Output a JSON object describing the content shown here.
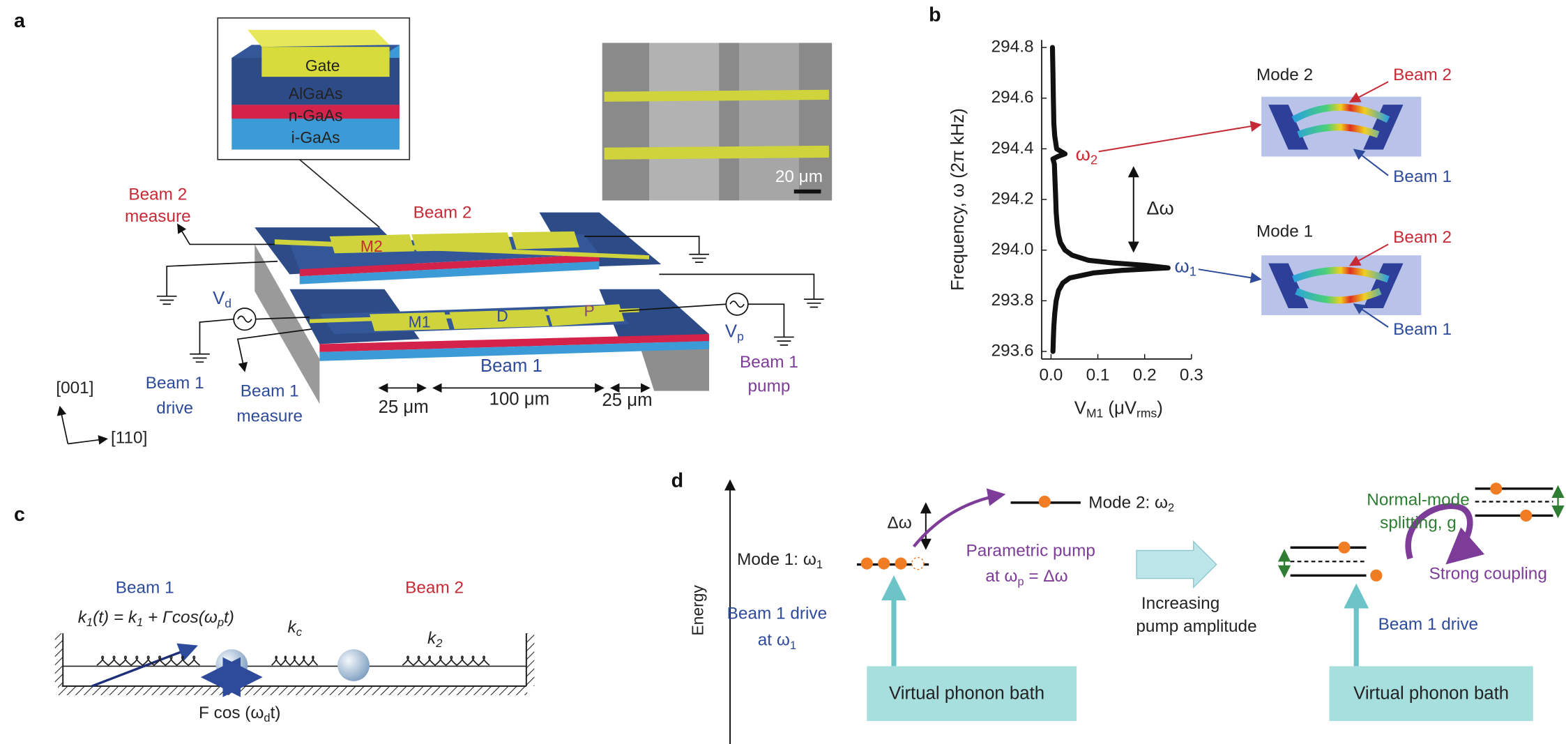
{
  "panel_labels": [
    "a",
    "b",
    "c",
    "d"
  ],
  "panel_a": {
    "layers": [
      "Gate",
      "AlGaAs",
      "n-GaAs",
      "i-GaAs"
    ],
    "scale_bar": "20 μm",
    "beam2": "Beam 2",
    "beam2_measure": {
      "line1": "Beam 2",
      "line2": "measure"
    },
    "electrodes": [
      "M2",
      "M1",
      "D",
      "P"
    ],
    "vd": [
      "V",
      "d"
    ],
    "vp": [
      "V",
      "p"
    ],
    "beam1": "Beam 1",
    "beam1_drive": {
      "line1": "Beam 1",
      "line2": "drive"
    },
    "beam1_measure": {
      "line1": "Beam 1",
      "line2": "measure"
    },
    "beam1_pump": {
      "line1": "Beam 1",
      "line2": "pump"
    },
    "dimensions": [
      "25 μm",
      "100 μm",
      "25 μm"
    ],
    "axes": [
      "[001]",
      "[110]"
    ]
  },
  "chart_data": {
    "type": "line",
    "orientation": "horizontal",
    "y_label": "Frequency, ω (2π kHz)",
    "x_label": [
      "V",
      "M1",
      " (μV",
      "rms",
      ")"
    ],
    "color": "#111111",
    "x": [
      293.6,
      293.65,
      293.7,
      293.75,
      293.8,
      293.84,
      293.87,
      293.89,
      293.91,
      293.92,
      293.93,
      293.94,
      293.95,
      293.96,
      293.98,
      294.0,
      294.03,
      294.06,
      294.1,
      294.15,
      294.2,
      294.25,
      294.3,
      294.34,
      294.36,
      294.37,
      294.38,
      294.4,
      294.45,
      294.5,
      294.6,
      294.7,
      294.8
    ],
    "values": [
      0.004,
      0.005,
      0.006,
      0.008,
      0.011,
      0.016,
      0.025,
      0.04,
      0.09,
      0.15,
      0.25,
      0.2,
      0.13,
      0.08,
      0.045,
      0.03,
      0.02,
      0.016,
      0.013,
      0.011,
      0.01,
      0.009,
      0.008,
      0.007,
      0.004,
      0.015,
      0.03,
      0.012,
      0.008,
      0.006,
      0.005,
      0.004,
      0.003
    ],
    "xlim": [
      -0.02,
      0.3
    ],
    "xticks": [
      {
        "value": 0,
        "label": "0.0"
      },
      0.1,
      0.2,
      0.3
    ],
    "ylim": [
      293.57,
      294.83
    ],
    "yticks": [
      293.6,
      293.8,
      {
        "value": 294,
        "label": "294.0"
      },
      294.2,
      294.4,
      294.6,
      294.8
    ]
  },
  "panel_b": {
    "omega2": [
      "ω",
      "2"
    ],
    "omega1": [
      "ω",
      "1"
    ],
    "delta": "Δω",
    "mode2": {
      "title": "Mode 2",
      "beam2": "Beam 2",
      "beam1": "Beam 1"
    },
    "mode1": {
      "title": "Mode 1",
      "beam2": "Beam 2",
      "beam1": "Beam 1"
    }
  },
  "panel_c": {
    "beam1": "Beam 1",
    "beam2": "Beam 2",
    "spring_eq": [
      "k",
      "1",
      "(t) = k",
      "1",
      " + Γcos(ω",
      "p",
      "t)"
    ],
    "kc": [
      "k",
      "c"
    ],
    "k2": [
      "k",
      "2"
    ],
    "force": [
      "F cos (ω",
      "d",
      "t)"
    ]
  },
  "panel_d": {
    "energy": "Energy",
    "mode1": [
      "Mode 1: ω",
      "1"
    ],
    "mode2": [
      "Mode 2: ω",
      "2"
    ],
    "delta": "Δω",
    "pump": {
      "line1": "Parametric pump",
      "line2": [
        "at ω",
        "p",
        " = Δω"
      ]
    },
    "drive": {
      "line1": "Beam 1 drive",
      "line2": [
        "at ω",
        "1"
      ]
    },
    "increasing": {
      "line1": "Increasing",
      "line2": "pump amplitude"
    },
    "bath_left": "Virtual phonon bath",
    "bath_right": "Virtual phonon bath",
    "splitting": {
      "line1": "Normal-mode",
      "line2": "splitting, g"
    },
    "strong": "Strong coupling",
    "drive_right": "Beam 1 drive"
  }
}
